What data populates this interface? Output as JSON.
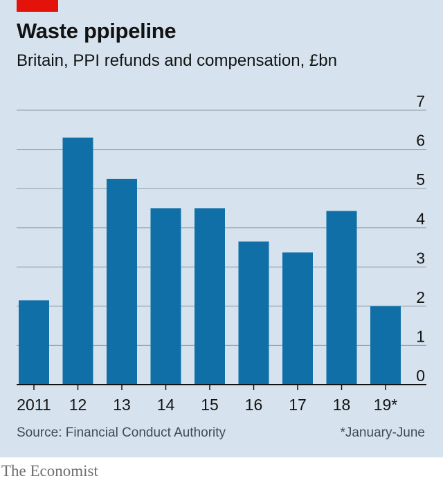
{
  "header": {
    "title": "Waste ppipeline",
    "subtitle": "Britain, PPI refunds and compensation, £bn"
  },
  "footer": {
    "source": "Source: Financial Conduct Authority",
    "footnote": "*January-June",
    "brand": "The Economist"
  },
  "colors": {
    "bar": "#0f6fa6",
    "background": "#d6e3ee",
    "grid": "#8c9aa6",
    "accent": "#e3120b"
  },
  "chart_data": {
    "type": "bar",
    "categories": [
      "2011",
      "12",
      "13",
      "14",
      "15",
      "16",
      "17",
      "18",
      "19*"
    ],
    "values": [
      2.15,
      6.3,
      5.25,
      4.5,
      4.5,
      3.65,
      3.37,
      4.43,
      2.0
    ],
    "title": "Waste ppipeline",
    "subtitle": "Britain, PPI refunds and compensation, £bn",
    "xlabel": "",
    "ylabel": "",
    "ylim": [
      0,
      7
    ],
    "yticks": [
      0,
      1,
      2,
      3,
      4,
      5,
      6,
      7
    ],
    "grid": true,
    "y_axis_side": "right"
  }
}
